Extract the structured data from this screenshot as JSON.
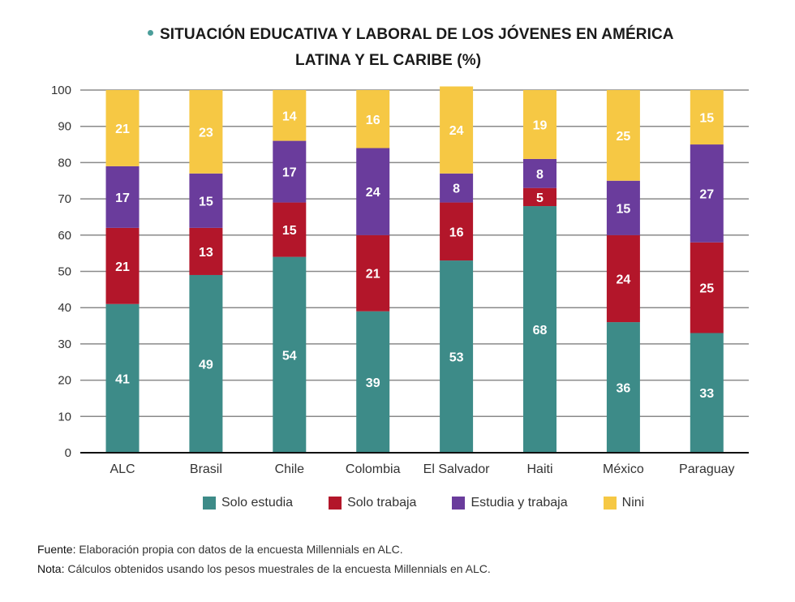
{
  "title": {
    "line1": "SITUACIÓN EDUCATIVA Y LABORAL DE LOS JÓVENES EN AMÉRICA",
    "line2": "LATINA Y EL CARIBE (%)",
    "bullet_color": "#4b9e9a"
  },
  "chart_data": {
    "type": "bar",
    "stacked": true,
    "title": "SITUACIÓN EDUCATIVA Y LABORAL DE LOS JÓVENES EN AMÉRICA LATINA Y EL CARIBE (%)",
    "xlabel": "",
    "ylabel": "",
    "ylim": [
      0,
      100
    ],
    "yticks": [
      0,
      10,
      20,
      30,
      40,
      50,
      60,
      70,
      80,
      90,
      100
    ],
    "grid": true,
    "legend_position": "bottom",
    "categories": [
      "ALC",
      "Brasil",
      "Chile",
      "Colombia",
      "El Salvador",
      "Haiti",
      "México",
      "Paraguay"
    ],
    "series": [
      {
        "name": "Solo estudia",
        "color": "#3d8b88",
        "values": [
          41,
          49,
          54,
          39,
          53,
          68,
          36,
          33
        ]
      },
      {
        "name": "Solo trabaja",
        "color": "#b3162a",
        "values": [
          21,
          13,
          15,
          21,
          16,
          5,
          24,
          25
        ]
      },
      {
        "name": "Estudia y trabaja",
        "color": "#6a3c9c",
        "values": [
          17,
          15,
          17,
          24,
          8,
          8,
          15,
          27
        ]
      },
      {
        "name": "Nini",
        "color": "#f6c844",
        "values": [
          21,
          23,
          14,
          16,
          24,
          19,
          25,
          15
        ]
      }
    ]
  },
  "legend": [
    {
      "label": "Solo estudia",
      "color": "#3d8b88"
    },
    {
      "label": "Solo trabaja",
      "color": "#b3162a"
    },
    {
      "label": "Estudia y trabaja",
      "color": "#6a3c9c"
    },
    {
      "label": "Nini",
      "color": "#f6c844"
    }
  ],
  "footnotes": {
    "source_label": "Fuente:",
    "source_text": " Elaboración propia con datos de la encuesta Millennials en ALC.",
    "note_label": "Nota:",
    "note_text": " Cálculos obtenidos usando los pesos muestrales de la encuesta Millennials en ALC."
  }
}
